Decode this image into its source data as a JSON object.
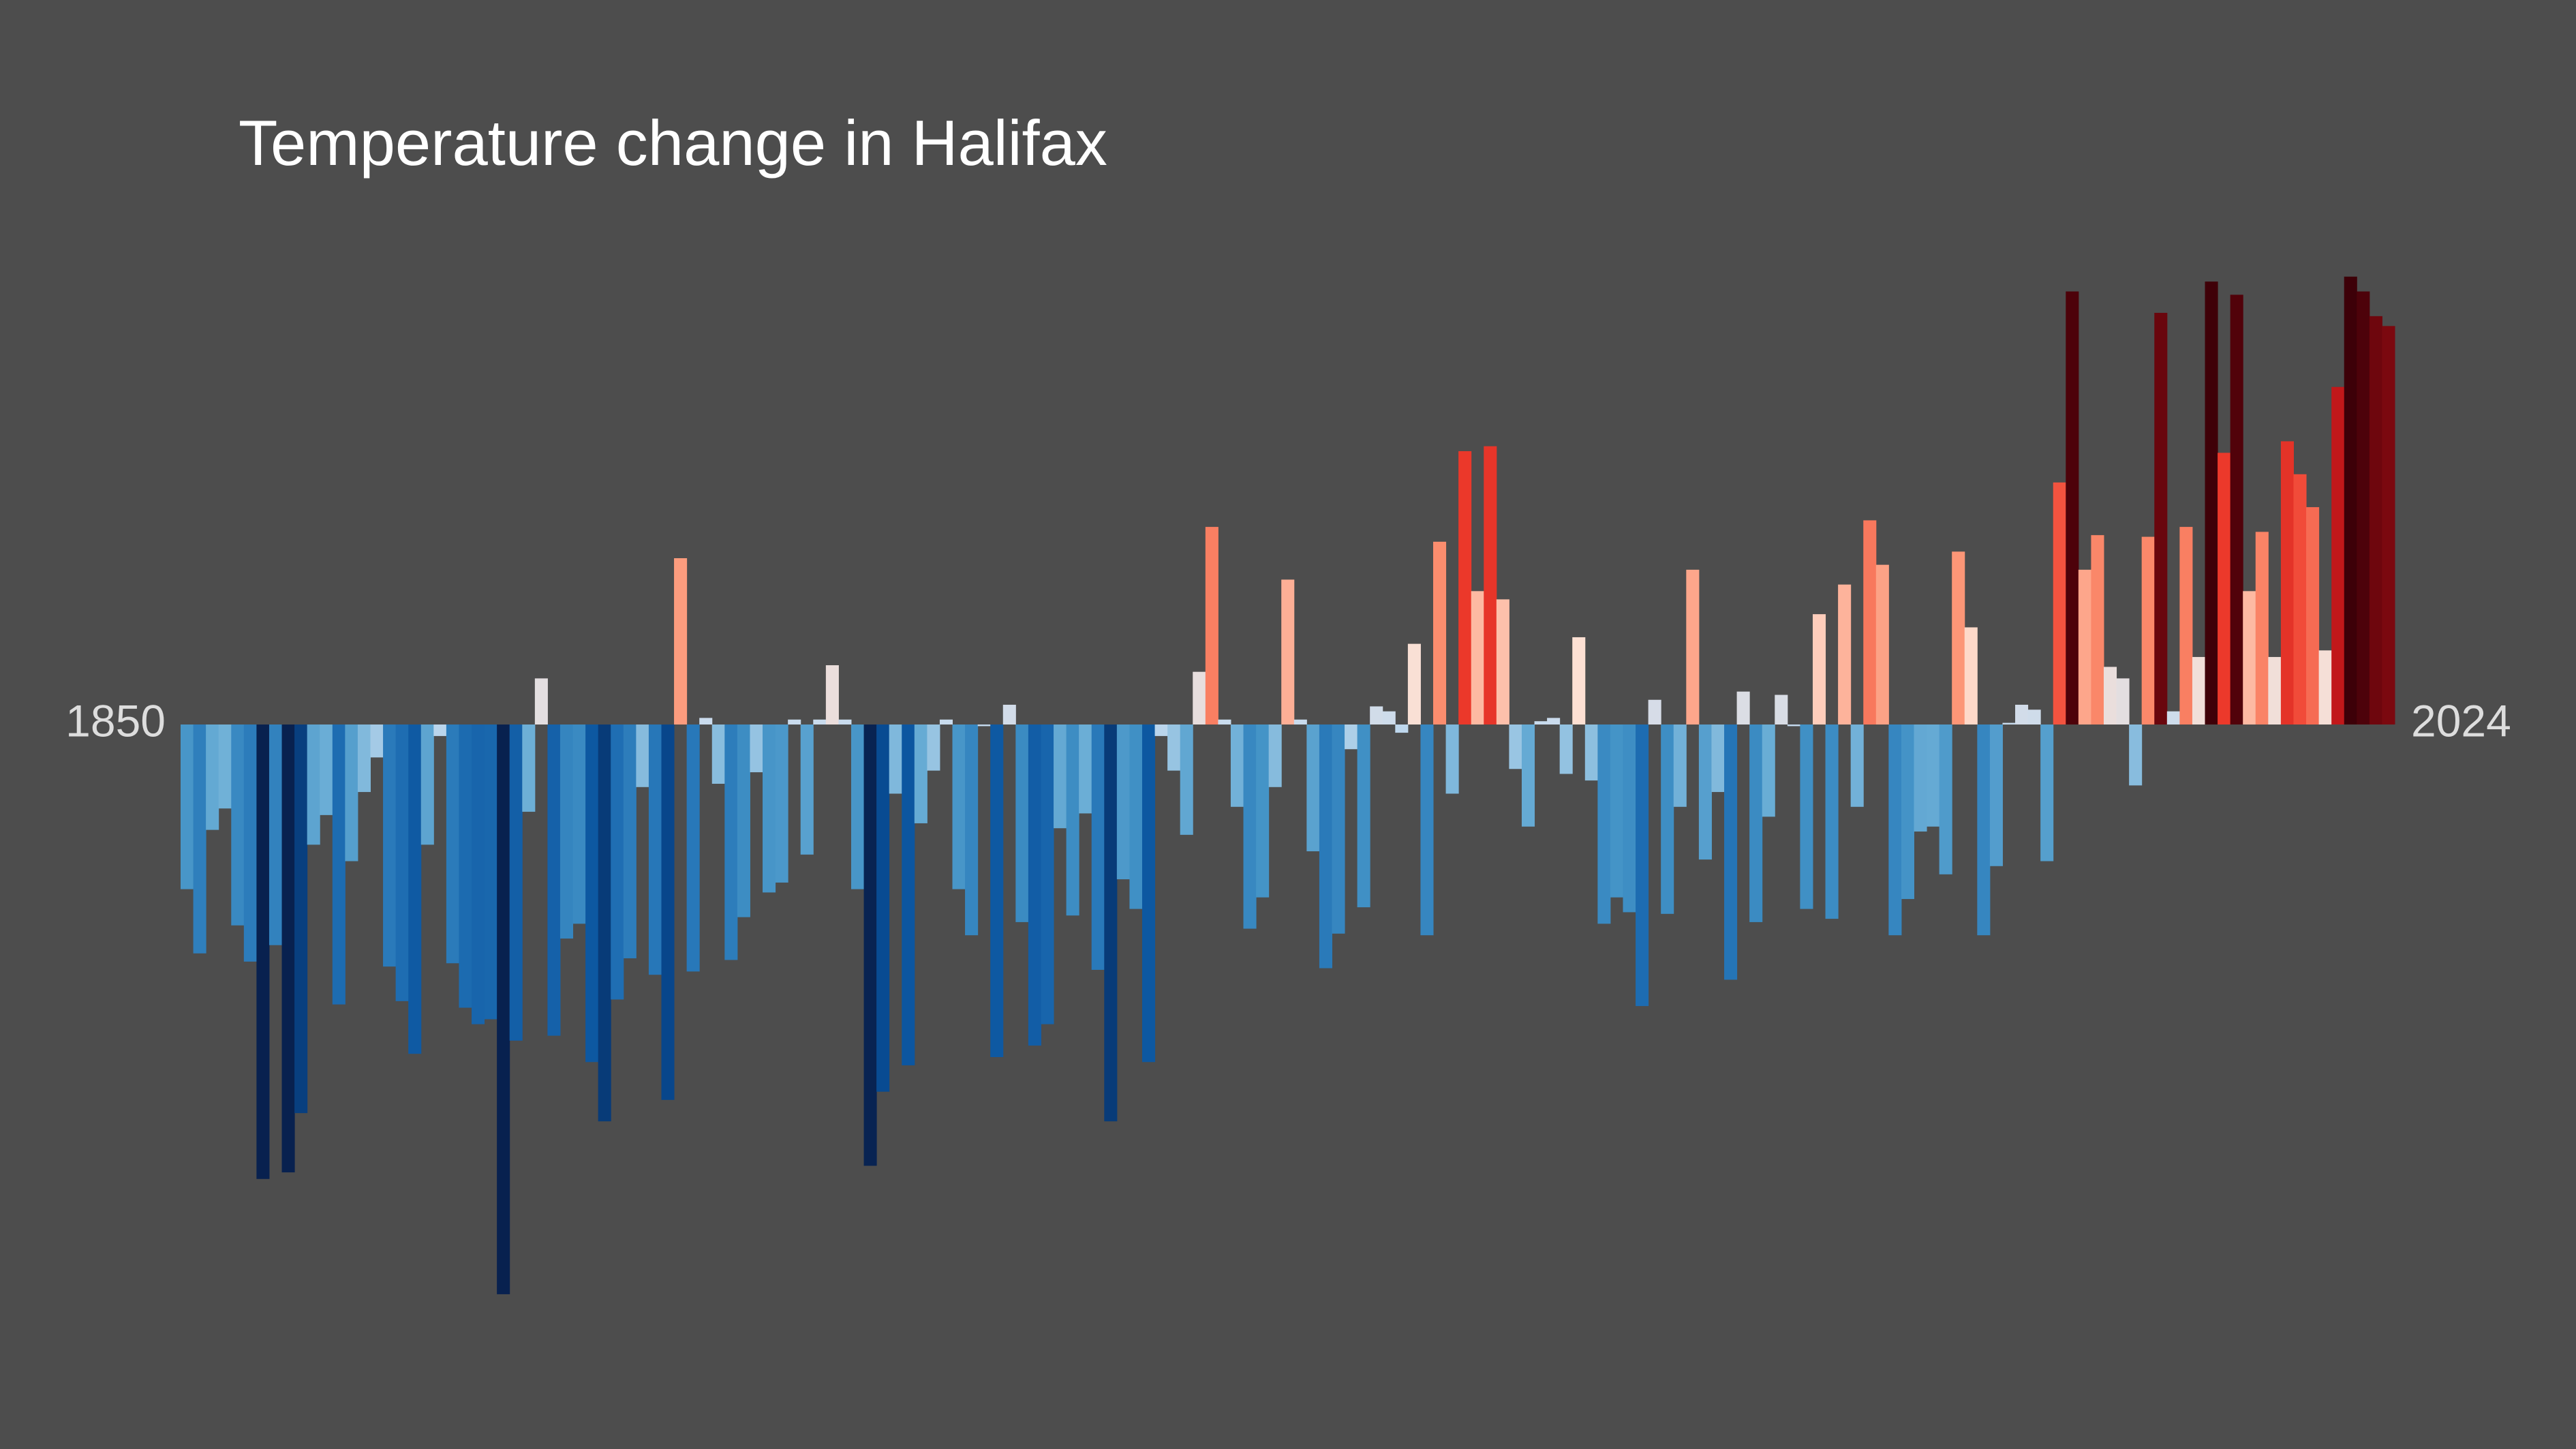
{
  "chart_data": {
    "type": "bar",
    "title": "Temperature change in Halifax",
    "xlim": [
      1850,
      2024
    ],
    "xticks": [
      {
        "value": 1850,
        "label": "1850"
      },
      {
        "value": 2024,
        "label": "2024"
      }
    ],
    "ylim": [
      -4.4,
      4.4
    ],
    "grid": false,
    "background": "#4d4d4d",
    "colormap": [
      "#08214f",
      "#08519c",
      "#2171b5",
      "#4292c6",
      "#6baed6",
      "#c6dbef",
      "#fee0d2",
      "#fc9272",
      "#ef3b2c",
      "#b50f15",
      "#3d0008"
    ],
    "clim": [
      -2.7,
      2.7
    ],
    "values": [
      -1.0,
      -1.39,
      -0.64,
      -0.51,
      -1.22,
      -1.44,
      -2.76,
      -1.34,
      -2.72,
      -2.36,
      -0.73,
      -0.55,
      -1.7,
      -0.83,
      -0.41,
      -0.2,
      -1.47,
      -1.68,
      -2.0,
      -0.73,
      -0.07,
      -1.45,
      -1.72,
      -1.82,
      -1.79,
      -3.46,
      -1.92,
      -0.53,
      0.28,
      -1.89,
      -1.3,
      -1.21,
      -2.05,
      -2.41,
      -1.67,
      -1.42,
      -0.38,
      -1.52,
      -2.28,
      1.01,
      -1.5,
      0.04,
      -0.36,
      -1.43,
      -1.17,
      -0.29,
      -1.02,
      -0.96,
      0.03,
      -0.79,
      0.03,
      0.36,
      0.03,
      -1.0,
      -2.68,
      -2.23,
      -0.42,
      -2.07,
      -0.6,
      -0.28,
      0.03,
      -1.0,
      -1.28,
      -0.01,
      -2.02,
      0.12,
      -1.2,
      -1.95,
      -1.82,
      -0.63,
      -1.16,
      -0.54,
      -1.49,
      -2.41,
      -0.94,
      -1.12,
      -2.05,
      -0.07,
      -0.28,
      -0.67,
      0.32,
      1.2,
      0.03,
      -0.5,
      -1.24,
      -1.05,
      -0.38,
      0.88,
      0.03,
      -0.77,
      -1.48,
      -1.27,
      -0.15,
      -1.11,
      0.11,
      0.08,
      -0.05,
      0.49,
      -1.28,
      1.11,
      -0.42,
      1.66,
      0.81,
      1.69,
      0.76,
      -0.27,
      -0.62,
      0.02,
      0.04,
      -0.3,
      0.53,
      -0.34,
      -1.21,
      -1.05,
      -1.14,
      -1.71,
      0.15,
      -1.15,
      -0.5,
      0.94,
      -0.82,
      -0.41,
      -1.55,
      0.2,
      -1.2,
      -0.56,
      0.18,
      -0.01,
      -1.12,
      0.67,
      -1.18,
      0.85,
      -0.5,
      1.24,
      0.97,
      -1.28,
      -1.06,
      -0.65,
      -0.62,
      -0.91,
      1.05,
      0.59,
      -1.28,
      -0.86,
      0.01,
      0.12,
      0.09,
      -0.83,
      1.47,
      2.63,
      0.94,
      1.15,
      0.35,
      0.28,
      -0.37,
      1.14,
      2.5,
      0.08,
      1.2,
      0.41,
      2.69,
      1.65,
      2.61,
      0.81,
      1.17,
      0.41,
      1.72,
      1.52,
      1.32,
      0.45,
      2.05,
      2.72,
      2.63,
      2.48,
      2.42
    ]
  }
}
